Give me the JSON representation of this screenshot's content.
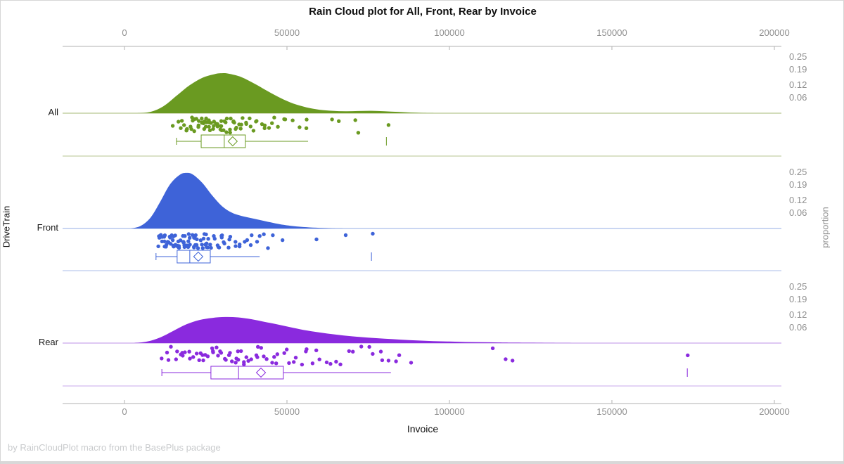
{
  "title": "Rain Cloud plot for All, Front, Rear by Invoice",
  "footnote": "by RainCloudPlot macro from the BasePlus package",
  "colors": {
    "axis_line": "#b2b2b2",
    "tick_text": "#8f8f8f",
    "title_text": "#0f0f0f",
    "footnote_text": "#c9cbcd"
  },
  "chart_data": {
    "type": "raincloud",
    "title": "Rain Cloud plot for All, Front, Rear by Invoice",
    "xlabel": "Invoice",
    "group_label": "DriveTrain",
    "right_axis_label": "proportion",
    "x_unit": 1000,
    "x_ticks": [
      0,
      50000,
      100000,
      150000,
      200000
    ],
    "xlim": [
      -19000,
      202000
    ],
    "proportion_tick_labels": [
      "0.25",
      "0.19",
      "0.12",
      "0.06"
    ],
    "proportion_tick_values": [
      0.25,
      0.19,
      0.12,
      0.06
    ],
    "groups": [
      {
        "name": "All",
        "color": "#6a9a21",
        "line_color": "#b7c690",
        "density": [
          [
            4,
            0
          ],
          [
            8,
            0.006
          ],
          [
            12,
            0.032
          ],
          [
            16,
            0.08
          ],
          [
            20,
            0.128
          ],
          [
            24,
            0.163
          ],
          [
            28,
            0.181
          ],
          [
            30,
            0.184
          ],
          [
            32,
            0.182
          ],
          [
            36,
            0.166
          ],
          [
            40,
            0.136
          ],
          [
            44,
            0.102
          ],
          [
            48,
            0.07
          ],
          [
            52,
            0.044
          ],
          [
            56,
            0.027
          ],
          [
            60,
            0.016
          ],
          [
            64,
            0.011
          ],
          [
            68,
            0.009
          ],
          [
            72,
            0.01
          ],
          [
            76,
            0.011
          ],
          [
            80,
            0.009
          ],
          [
            84,
            0.006
          ],
          [
            88,
            0.003
          ],
          [
            92,
            0.001
          ],
          [
            96,
            0
          ]
        ],
        "points": [
          15.5,
          16.2,
          16.8,
          17.4,
          18.1,
          18.9,
          19.2,
          19.6,
          20.1,
          20.4,
          20.8,
          21.2,
          21.5,
          21.9,
          22.1,
          22.3,
          22.6,
          22.9,
          23.2,
          23.5,
          23.8,
          24.1,
          24.4,
          24.7,
          24.9,
          25.0,
          25.3,
          25.6,
          25.9,
          26.2,
          26.5,
          26.8,
          27.1,
          27.2,
          27.4,
          27.7,
          28.0,
          28.3,
          28.6,
          28.9,
          29.0,
          29.2,
          29.5,
          29.8,
          30.1,
          30.4,
          30.7,
          30.9,
          31.0,
          31.4,
          31.8,
          32.2,
          32.6,
          33.0,
          33.4,
          33.6,
          33.8,
          34.2,
          34.7,
          35.2,
          35.7,
          36.2,
          36.7,
          37.2,
          37.8,
          38.4,
          39.0,
          39.6,
          40.3,
          41.0,
          41.8,
          42.6,
          43.5,
          44.4,
          45.3,
          46.3,
          47.3,
          48.9,
          49.8,
          52.0,
          53.5,
          55.8,
          56.1,
          64.3,
          65.6,
          70.8,
          71.6,
          80.7
        ],
        "box": {
          "whisker_low": 16.0,
          "q1": 23.6,
          "median": 30.7,
          "q3": 37.2,
          "mean": 33.3,
          "whisker_high": 56.5,
          "far_outlier": 80.6
        }
      },
      {
        "name": "Front",
        "color": "#3e63d8",
        "line_color": "#abbde9",
        "density": [
          [
            2,
            0
          ],
          [
            5,
            0.012
          ],
          [
            8,
            0.05
          ],
          [
            11,
            0.123
          ],
          [
            14,
            0.203
          ],
          [
            17,
            0.247
          ],
          [
            19,
            0.256
          ],
          [
            21,
            0.249
          ],
          [
            24,
            0.209
          ],
          [
            27,
            0.152
          ],
          [
            30,
            0.103
          ],
          [
            33,
            0.073
          ],
          [
            36,
            0.058
          ],
          [
            39,
            0.048
          ],
          [
            42,
            0.038
          ],
          [
            45,
            0.028
          ],
          [
            48,
            0.019
          ],
          [
            52,
            0.011
          ],
          [
            56,
            0.006
          ],
          [
            60,
            0.003
          ],
          [
            64,
            0.001
          ],
          [
            68,
            0
          ]
        ],
        "points": [
          9.9,
          10.4,
          10.9,
          11.3,
          11.6,
          11.9,
          12.2,
          12.5,
          12.8,
          13.0,
          13.2,
          13.4,
          13.6,
          13.8,
          14.0,
          14.2,
          14.4,
          14.6,
          14.8,
          15.0,
          15.2,
          15.4,
          15.6,
          15.8,
          16.0,
          16.2,
          16.4,
          16.6,
          16.8,
          17.0,
          17.2,
          17.4,
          17.6,
          17.8,
          18.0,
          18.2,
          18.4,
          18.6,
          18.8,
          19.0,
          19.2,
          19.4,
          19.6,
          19.8,
          20.0,
          20.2,
          20.4,
          20.6,
          20.8,
          21.0,
          21.2,
          21.4,
          21.7,
          22.0,
          22.3,
          22.6,
          22.9,
          23.2,
          23.5,
          23.8,
          24.1,
          24.4,
          24.7,
          25.0,
          25.3,
          25.6,
          25.9,
          26.2,
          26.5,
          26.9,
          27.3,
          27.7,
          28.1,
          28.5,
          28.9,
          29.3,
          29.8,
          30.3,
          30.8,
          31.3,
          31.9,
          32.5,
          33.1,
          33.8,
          34.5,
          35.2,
          36.0,
          36.8,
          37.7,
          38.6,
          39.6,
          40.6,
          41.6,
          43.0,
          44.5,
          45.7,
          48.0,
          59.7,
          68.6,
          76.0
        ],
        "box": {
          "whisker_low": 9.7,
          "q1": 16.2,
          "median": 20.1,
          "q3": 26.4,
          "mean": 22.7,
          "whisker_high": 41.6,
          "far_outlier": 76.0
        }
      },
      {
        "name": "Rear",
        "color": "#8a2ade",
        "line_color": "#c9a8ec",
        "density": [
          [
            3,
            0
          ],
          [
            7,
            0.007
          ],
          [
            11,
            0.026
          ],
          [
            15,
            0.056
          ],
          [
            19,
            0.086
          ],
          [
            23,
            0.106
          ],
          [
            27,
            0.116
          ],
          [
            31,
            0.12
          ],
          [
            35,
            0.118
          ],
          [
            39,
            0.11
          ],
          [
            43,
            0.098
          ],
          [
            47,
            0.086
          ],
          [
            51,
            0.073
          ],
          [
            55,
            0.061
          ],
          [
            60,
            0.049
          ],
          [
            65,
            0.039
          ],
          [
            70,
            0.031
          ],
          [
            75,
            0.025
          ],
          [
            80,
            0.02
          ],
          [
            85,
            0.016
          ],
          [
            90,
            0.012
          ],
          [
            95,
            0.009
          ],
          [
            100,
            0.007
          ],
          [
            105,
            0.005
          ],
          [
            110,
            0.004
          ],
          [
            115,
            0.003
          ],
          [
            120,
            0.002
          ],
          [
            130,
            0.001
          ],
          [
            140,
            0
          ]
        ],
        "points": [
          11.5,
          12.5,
          13.5,
          14.5,
          15.3,
          16.1,
          16.9,
          17.7,
          18.4,
          19.1,
          19.8,
          20.5,
          21.2,
          21.9,
          22.6,
          23.3,
          24.0,
          24.6,
          25.2,
          25.8,
          26.4,
          27.0,
          27.6,
          28.2,
          28.8,
          29.4,
          30.0,
          30.6,
          31.2,
          31.8,
          32.4,
          33.0,
          33.6,
          34.2,
          34.8,
          35.4,
          36.0,
          36.6,
          37.2,
          37.9,
          38.6,
          39.3,
          40.0,
          40.8,
          41.6,
          42.4,
          43.2,
          44.0,
          44.9,
          45.8,
          46.7,
          47.6,
          48.6,
          49.6,
          50.6,
          51.7,
          52.8,
          54.0,
          55.2,
          56.5,
          57.8,
          59.2,
          60.6,
          62.1,
          63.7,
          65.3,
          67.0,
          68.8,
          70.7,
          72.7,
          74.9,
          77.0,
          79.2,
          79.9,
          81.5,
          83.1,
          84.2,
          87.9,
          112.8,
          117.3,
          119.5,
          173.2
        ],
        "box": {
          "whisker_low": 11.5,
          "q1": 26.6,
          "median": 35.1,
          "q3": 48.9,
          "mean": 42.0,
          "whisker_high": 82.0,
          "far_outlier": 173.2
        }
      }
    ]
  }
}
